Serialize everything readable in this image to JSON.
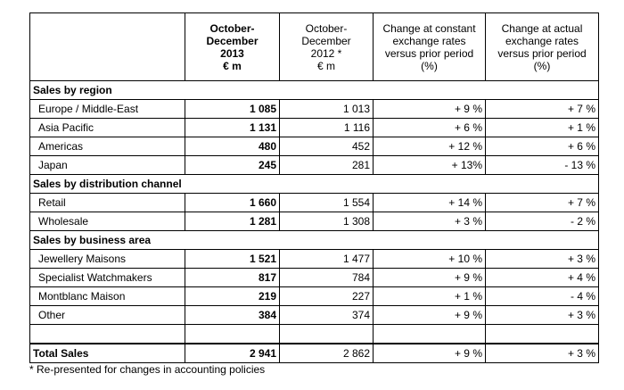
{
  "headers": {
    "col1": [
      "October-",
      "December",
      "2013",
      "€ m"
    ],
    "col2": [
      "October-",
      "December",
      "2012 *",
      "€ m"
    ],
    "col3": [
      "Change at constant",
      "exchange rates",
      "versus prior period",
      "(%)"
    ],
    "col4": [
      "Change at actual",
      "exchange rates",
      "versus prior period",
      "(%)"
    ]
  },
  "sections": [
    {
      "title": "Sales by region",
      "rows": [
        {
          "label": "Europe / Middle-East",
          "v2013": "1 085",
          "v2012": "1 013",
          "constant": "+ 9 %",
          "actual": "+ 7 %"
        },
        {
          "label": "Asia Pacific",
          "v2013": "1 131",
          "v2012": "1 116",
          "constant": "+ 6 %",
          "actual": "+ 1 %"
        },
        {
          "label": "Americas",
          "v2013": "480",
          "v2012": "452",
          "constant": "+ 12 %",
          "actual": "+ 6 %"
        },
        {
          "label": "Japan",
          "v2013": "245",
          "v2012": "281",
          "constant": "+ 13%",
          "actual": "- 13 %"
        }
      ]
    },
    {
      "title": "Sales by distribution channel",
      "rows": [
        {
          "label": "Retail",
          "v2013": "1 660",
          "v2012": "1 554",
          "constant": "+ 14 %",
          "actual": "+ 7 %"
        },
        {
          "label": "Wholesale",
          "v2013": "1 281",
          "v2012": "1 308",
          "constant": "+ 3 %",
          "actual": "- 2 %"
        }
      ]
    },
    {
      "title": "Sales by business area",
      "rows": [
        {
          "label": "Jewellery Maisons",
          "v2013": "1 521",
          "v2012": "1 477",
          "constant": "+ 10 %",
          "actual": "+ 3 %"
        },
        {
          "label": "Specialist Watchmakers",
          "v2013": "817",
          "v2012": "784",
          "constant": "+ 9 %",
          "actual": "+ 4 %"
        },
        {
          "label": "Montblanc Maison",
          "v2013": "219",
          "v2012": "227",
          "constant": "+ 1 %",
          "actual": "- 4 %"
        },
        {
          "label": "Other",
          "v2013": "384",
          "v2012": "374",
          "constant": "+ 9 %",
          "actual": "+ 3 %"
        }
      ]
    }
  ],
  "total": {
    "label": "Total Sales",
    "v2013": "2 941",
    "v2012": "2 862",
    "constant": "+ 9 %",
    "actual": "+ 3 %"
  },
  "footnote": "* Re-presented for changes in accounting policies"
}
